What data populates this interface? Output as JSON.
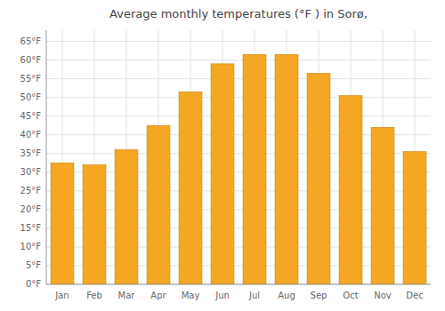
{
  "chart_data": {
    "type": "bar",
    "title": "Average monthly temperatures (°F ) in Sorø,",
    "categories": [
      "Jan",
      "Feb",
      "Mar",
      "Apr",
      "May",
      "Jun",
      "Jul",
      "Aug",
      "Sep",
      "Oct",
      "Nov",
      "Dec"
    ],
    "values": [
      32.5,
      32.0,
      36.0,
      42.5,
      51.5,
      59.0,
      61.5,
      61.5,
      56.5,
      50.5,
      42.0,
      35.5
    ],
    "color": "#F5A623",
    "ylim": [
      0,
      68
    ],
    "yticks": [
      {
        "value": 0,
        "label": "0°F"
      },
      {
        "value": 5,
        "label": "5°F"
      },
      {
        "value": 10,
        "label": "10°F"
      },
      {
        "value": 15,
        "label": "15°F"
      },
      {
        "value": 20,
        "label": "20°F"
      },
      {
        "value": 25,
        "label": "25°F"
      },
      {
        "value": 30,
        "label": "30°F"
      },
      {
        "value": 35,
        "label": "35°F"
      },
      {
        "value": 40,
        "label": "40°F"
      },
      {
        "value": 45,
        "label": "45°F"
      },
      {
        "value": 50,
        "label": "50°F"
      },
      {
        "value": 55,
        "label": "55°F"
      },
      {
        "value": 60,
        "label": "60°F"
      },
      {
        "value": 65,
        "label": "65°F"
      }
    ],
    "grid": true
  }
}
